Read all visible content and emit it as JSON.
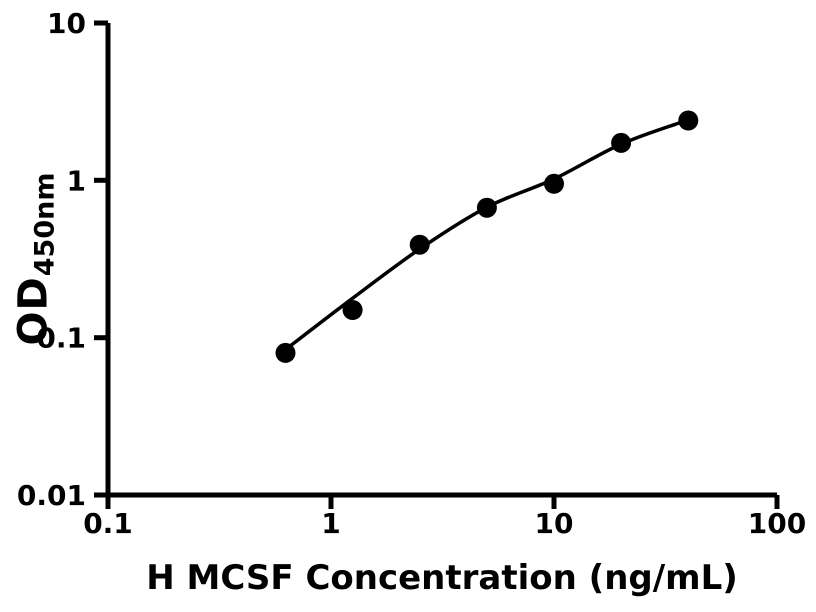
{
  "chart_data": {
    "type": "scatter",
    "title": "",
    "xlabel": "H MCSF Concentration (ng/mL)",
    "ylabel_main": "OD",
    "ylabel_sub": "450nm",
    "x_scale": "log",
    "y_scale": "log",
    "xlim": [
      0.1,
      100
    ],
    "ylim": [
      0.01,
      10
    ],
    "x_ticks": [
      "0.1",
      "1",
      "10",
      "100"
    ],
    "y_ticks": [
      "0.01",
      "0.1",
      "1",
      "10"
    ],
    "grid": false,
    "legend": false,
    "colors": {
      "foreground": "#000000",
      "background": "#ffffff"
    },
    "series": [
      {
        "name": "standard-points",
        "type": "scatter",
        "marker": "circle",
        "x": [
          0.625,
          1.25,
          2.5,
          5,
          10,
          20,
          40
        ],
        "y": [
          0.08,
          0.15,
          0.39,
          0.67,
          0.95,
          1.73,
          2.4
        ]
      },
      {
        "name": "fitted-curve",
        "type": "line",
        "x": [
          0.625,
          1.25,
          2.5,
          5,
          10,
          20,
          40
        ],
        "y": [
          0.084,
          0.178,
          0.366,
          0.675,
          1.02,
          1.7,
          2.42
        ]
      }
    ]
  }
}
